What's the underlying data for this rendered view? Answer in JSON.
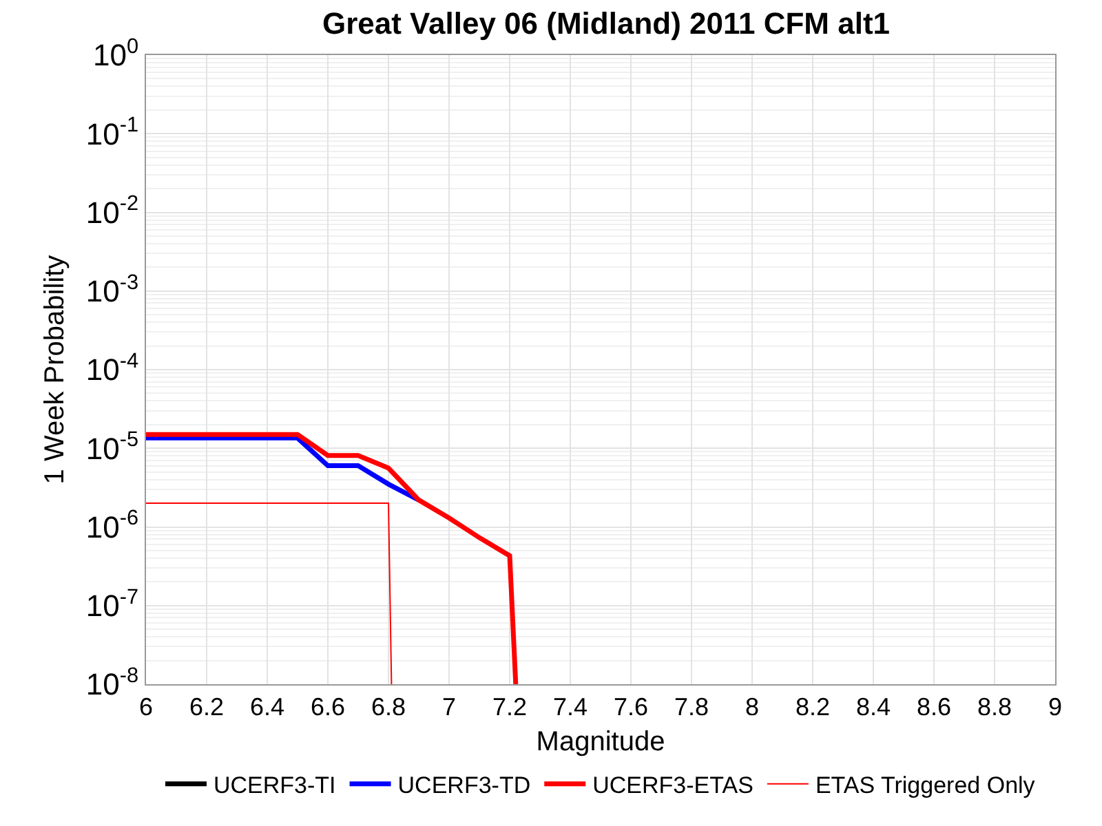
{
  "chart_data": {
    "type": "line",
    "title": "Great Valley 06 (Midland) 2011 CFM alt1",
    "xlabel": "Magnitude",
    "ylabel": "1 Week Probability",
    "log": "y",
    "grid": true,
    "legend": "bottom",
    "marker": "none",
    "line_style": "solid",
    "xlim": [
      6,
      9
    ],
    "xticks": [
      6,
      6.2,
      6.4,
      6.6,
      6.8,
      7,
      7.2,
      7.4,
      7.6,
      7.8,
      8,
      8.2,
      8.4,
      8.6,
      8.8,
      9
    ],
    "ylim": [
      1e-08,
      1
    ],
    "yticks": [
      {
        "value": 1e-08,
        "label": "10$^{-8}$"
      },
      {
        "value": 1e-07,
        "label": "10$^{-7}$"
      },
      {
        "value": 1e-06,
        "label": "10$^{-6}$"
      },
      {
        "value": 1e-05,
        "label": "10$^{-5}$"
      },
      {
        "value": 0.0001,
        "label": "10$^{-4}$"
      },
      {
        "value": 0.001,
        "label": "10$^{-3}$"
      },
      {
        "value": 0.01,
        "label": "10$^{-2}$"
      },
      {
        "value": 0.1,
        "label": "10$^{-1}$"
      },
      {
        "value": 1,
        "label": "10$^{0}$"
      }
    ],
    "series": [
      {
        "name": "UCERF3-TI",
        "color": "#000000"
      },
      {
        "name": "UCERF3-TD",
        "color": "#0000ff",
        "x": [
          6,
          6.5,
          6.6,
          6.7,
          6.8,
          6.9
        ],
        "values": [
          1.35e-05,
          1.35e-05,
          6e-06,
          6e-06,
          3.5e-06,
          2.2e-06
        ]
      },
      {
        "name": "UCERF3-ETAS",
        "color": "#ff0000",
        "x": [
          6,
          6.5,
          6.6,
          6.7,
          6.8,
          6.9,
          7,
          7.1,
          7.2,
          7.22
        ],
        "values": [
          1.5e-05,
          1.5e-05,
          8.1e-06,
          8.1e-06,
          5.6e-06,
          2.2e-06,
          1.3e-06,
          7.3e-07,
          4.3e-07,
          1e-08
        ]
      },
      {
        "name": "ETAS Triggered Only",
        "color": "#ff0000",
        "x": [
          6,
          6.8,
          6.81
        ],
        "values": [
          2e-06,
          2e-06,
          1e-08
        ]
      }
    ]
  }
}
